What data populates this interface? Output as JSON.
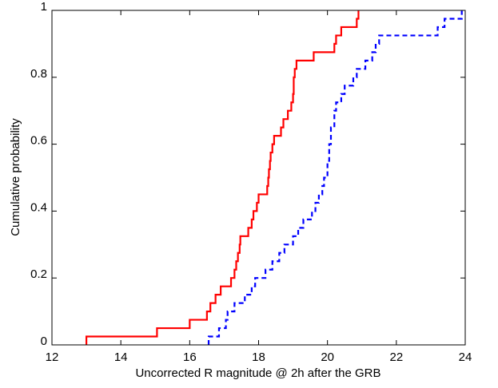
{
  "chart_data": {
    "type": "line",
    "drawstyle": "steps-post",
    "xlabel": "Uncorrected R magnitude @ 2h after the GRB",
    "ylabel": "Cumulative probability",
    "xlim": [
      12,
      24
    ],
    "ylim": [
      0,
      1
    ],
    "xticks": [
      12,
      14,
      16,
      18,
      20,
      22,
      24
    ],
    "yticks": [
      0,
      0.2,
      0.4,
      0.6,
      0.8,
      1
    ],
    "series": [
      {
        "color": "#ff0000",
        "linestyle": "solid",
        "x": [
          13.0,
          13.0,
          15.05,
          16.0,
          16.5,
          16.6,
          16.75,
          16.9,
          17.2,
          17.3,
          17.35,
          17.4,
          17.45,
          17.47,
          17.7,
          17.8,
          17.85,
          17.95,
          18.0,
          18.25,
          18.28,
          18.3,
          18.33,
          18.35,
          18.4,
          18.45,
          18.65,
          18.72,
          18.85,
          18.95,
          19.0,
          19.02,
          19.05,
          19.1,
          19.6,
          20.2,
          20.25,
          20.4,
          20.85,
          20.9
        ],
        "values": [
          0,
          0.025,
          0.05,
          0.075,
          0.1,
          0.125,
          0.15,
          0.175,
          0.2,
          0.225,
          0.25,
          0.275,
          0.3,
          0.325,
          0.35,
          0.375,
          0.4,
          0.425,
          0.45,
          0.475,
          0.5,
          0.525,
          0.55,
          0.575,
          0.6,
          0.625,
          0.65,
          0.675,
          0.7,
          0.725,
          0.75,
          0.8,
          0.825,
          0.85,
          0.875,
          0.9,
          0.925,
          0.95,
          0.975,
          1.0
        ]
      },
      {
        "color": "#0000ff",
        "linestyle": "dashed",
        "x": [
          16.55,
          16.55,
          16.85,
          17.05,
          17.1,
          17.3,
          17.6,
          17.8,
          17.9,
          18.2,
          18.4,
          18.6,
          18.75,
          19.0,
          19.15,
          19.3,
          19.55,
          19.65,
          19.75,
          19.85,
          19.9,
          20.0,
          20.05,
          20.1,
          20.2,
          20.25,
          20.4,
          20.5,
          20.75,
          20.85,
          21.1,
          21.3,
          21.4,
          21.5,
          23.2,
          23.4,
          23.9
        ],
        "values": [
          0,
          0.025,
          0.05,
          0.075,
          0.1,
          0.125,
          0.15,
          0.175,
          0.2,
          0.225,
          0.25,
          0.275,
          0.3,
          0.325,
          0.35,
          0.375,
          0.4,
          0.425,
          0.45,
          0.475,
          0.5,
          0.55,
          0.6,
          0.65,
          0.7,
          0.725,
          0.75,
          0.775,
          0.8,
          0.825,
          0.85,
          0.875,
          0.9,
          0.925,
          0.95,
          0.975,
          1.0
        ]
      }
    ]
  }
}
